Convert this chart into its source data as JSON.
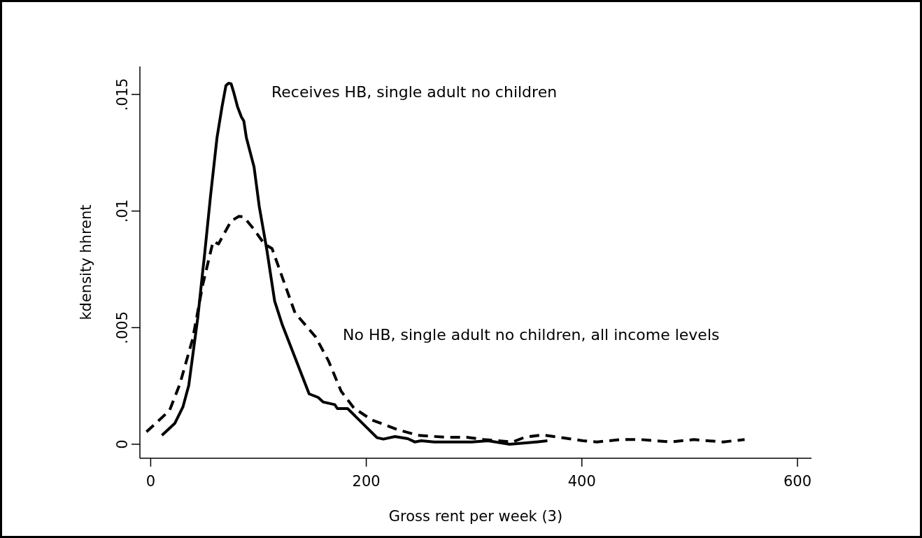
{
  "chart_data": {
    "type": "line",
    "xlabel": "Gross rent per week (3)",
    "ylabel": "kdensity hhrent",
    "xlim": [
      -10,
      613
    ],
    "ylim": [
      -0.0006,
      0.0162
    ],
    "xticks": [
      0,
      200,
      400,
      600
    ],
    "yticks": [
      {
        "value": 0,
        "label": "0"
      },
      {
        "value": 0.005,
        "label": ".005"
      },
      {
        "value": 0.01,
        "label": ".01"
      },
      {
        "value": 0.015,
        "label": ".015"
      }
    ],
    "grid": false,
    "annotations": [
      "Receives HB, single adult no children",
      "No HB, single adult no children, all income levels"
    ],
    "series": [
      {
        "color": "#000000",
        "line_style": "solid",
        "x": [
          10.4,
          22.3,
          29.9,
          35.3,
          43.7,
          48.4,
          49.6,
          55.5,
          61.5,
          66.2,
          69.8,
          72.2,
          74.6,
          76.9,
          80.5,
          84.1,
          86.4,
          88.8,
          95.9,
          100.7,
          107.8,
          115,
          122.1,
          147,
          155.3,
          160.1,
          170.8,
          173.2,
          182.7,
          210,
          215.9,
          226.6,
          238.5,
          245,
          251,
          263,
          298,
          313,
          333,
          358,
          368
        ],
        "values": [
          0.00038,
          0.00089,
          0.0016,
          0.00252,
          0.00543,
          0.00747,
          0.00796,
          0.01064,
          0.01314,
          0.01448,
          0.01538,
          0.01548,
          0.01546,
          0.01511,
          0.01448,
          0.01404,
          0.01386,
          0.01314,
          0.01189,
          0.0102,
          0.00832,
          0.00614,
          0.00512,
          0.00216,
          0.00201,
          0.00181,
          0.0017,
          0.00153,
          0.00153,
          0.00028,
          0.00022,
          0.00033,
          0.00024,
          0.0001,
          0.00015,
          0.0001,
          0.0001,
          0.00015,
          0,
          0.0001,
          0.00015
        ]
      },
      {
        "color": "#000000",
        "line_style": "dashed",
        "x": [
          -3.9,
          17.5,
          27,
          38.9,
          48.4,
          57.9,
          62.9,
          74.6,
          81.8,
          86.4,
          95.9,
          105.4,
          112.6,
          122.1,
          133.9,
          152.9,
          164.8,
          176.7,
          188.6,
          205.2,
          229,
          248,
          274,
          293,
          309,
          336,
          347,
          363,
          379,
          401,
          414,
          436,
          455,
          482,
          504,
          531,
          551
        ],
        "values": [
          0.00053,
          0.00145,
          0.00257,
          0.00451,
          0.00686,
          0.0087,
          0.00859,
          0.00957,
          0.00977,
          0.00975,
          0.00921,
          0.00859,
          0.00839,
          0.00716,
          0.00563,
          0.00461,
          0.00359,
          0.00227,
          0.00155,
          0.00104,
          0.00063,
          0.00038,
          0.0003,
          0.0003,
          0.0002,
          0.0001,
          0.0003,
          0.0004,
          0.0003,
          0.00015,
          0.0001,
          0.0002,
          0.0002,
          0.0001,
          0.0002,
          0.0001,
          0.0002
        ]
      }
    ]
  }
}
